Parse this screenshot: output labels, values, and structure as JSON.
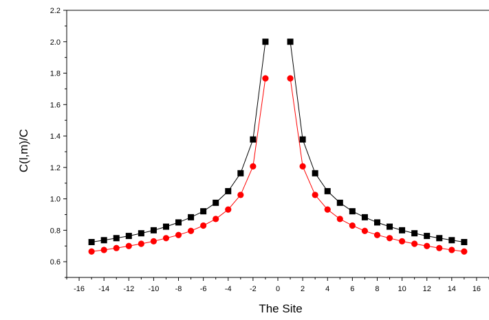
{
  "chart_data": {
    "type": "line",
    "title": "",
    "xlabel": "The Site",
    "ylabel": "C(l,m)/C",
    "xlim": [
      -17,
      17
    ],
    "ylim": [
      0.5,
      2.2
    ],
    "x_ticks": [
      -16,
      -14,
      -12,
      -10,
      -8,
      -6,
      -4,
      -2,
      0,
      2,
      4,
      6,
      8,
      10,
      12,
      14,
      16
    ],
    "y_ticks": [
      0.6,
      0.8,
      1.0,
      1.2,
      1.4,
      1.6,
      1.8,
      2.0,
      2.2
    ],
    "y_tick_labels": [
      "0.6",
      "0.8",
      "1.0",
      "1.2",
      "1.4",
      "1.6",
      "1.8",
      "2.0",
      "2.2"
    ],
    "grid": false,
    "legend": "none",
    "series": [
      {
        "marker": "square",
        "color": "#000000",
        "x": [
          -15,
          -14,
          -13,
          -12,
          -11,
          -10,
          -9,
          -8,
          -7,
          -6,
          -5,
          -4,
          -3,
          -2,
          -1,
          1,
          2,
          3,
          4,
          5,
          6,
          7,
          8,
          9,
          10,
          11,
          12,
          13,
          14,
          15
        ],
        "y": [
          0.725,
          0.737,
          0.75,
          0.764,
          0.781,
          0.8,
          0.823,
          0.85,
          0.883,
          0.921,
          0.975,
          1.049,
          1.163,
          1.378,
          2.0,
          2.0,
          1.378,
          1.163,
          1.049,
          0.975,
          0.921,
          0.883,
          0.85,
          0.823,
          0.8,
          0.781,
          0.764,
          0.75,
          0.737,
          0.725
        ]
      },
      {
        "marker": "circle",
        "color": "#ff0000",
        "x": [
          -15,
          -14,
          -13,
          -12,
          -11,
          -10,
          -9,
          -8,
          -7,
          -6,
          -5,
          -4,
          -3,
          -2,
          -1,
          1,
          2,
          3,
          4,
          5,
          6,
          7,
          8,
          9,
          10,
          11,
          12,
          13,
          14,
          15
        ],
        "y": [
          0.665,
          0.675,
          0.687,
          0.7,
          0.714,
          0.73,
          0.75,
          0.77,
          0.796,
          0.83,
          0.872,
          0.932,
          1.025,
          1.207,
          1.767,
          1.767,
          1.207,
          1.025,
          0.932,
          0.872,
          0.83,
          0.796,
          0.77,
          0.75,
          0.73,
          0.714,
          0.7,
          0.687,
          0.675,
          0.665
        ]
      }
    ]
  }
}
